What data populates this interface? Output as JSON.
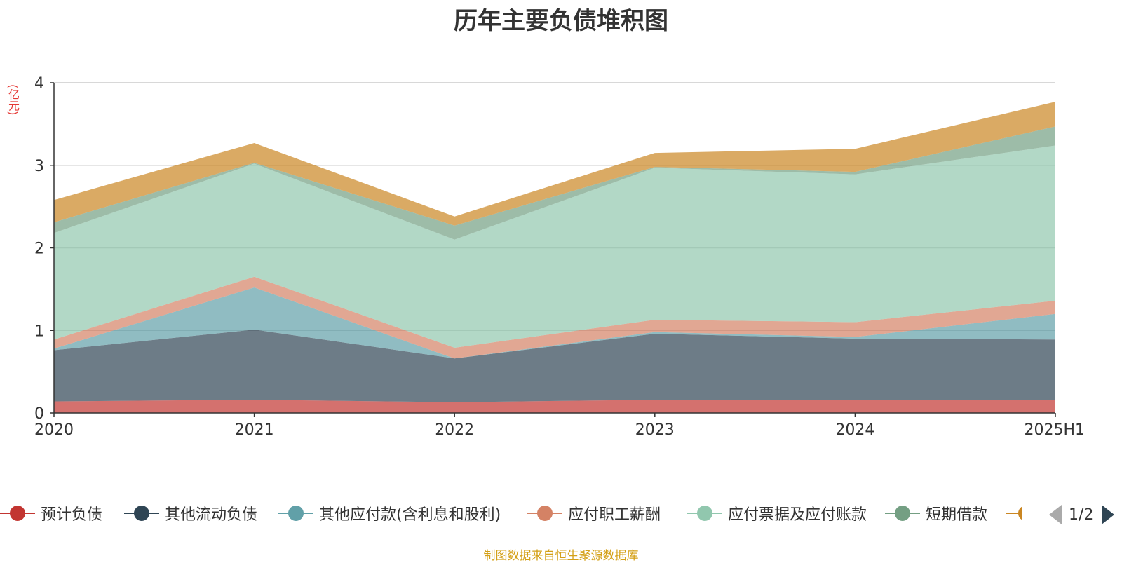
{
  "chart_data": {
    "type": "area",
    "stacked": true,
    "title": "历年主要负债堆积图",
    "ylabel": "(亿元)",
    "categories": [
      "2020",
      "2021",
      "2022",
      "2023",
      "2024",
      "2025H1"
    ],
    "ylim": [
      0,
      4
    ],
    "yticks": [
      0,
      1,
      2,
      3,
      4
    ],
    "grid": true,
    "legend_position": "bottom",
    "series": [
      {
        "name": "预计负债",
        "color": "#c23531",
        "values": [
          0.14,
          0.16,
          0.13,
          0.16,
          0.16,
          0.16
        ]
      },
      {
        "name": "其他流动负债",
        "color": "#2f4554",
        "values": [
          0.62,
          0.85,
          0.53,
          0.8,
          0.74,
          0.73
        ]
      },
      {
        "name": "其他应付款(含利息和股利)",
        "color": "#61a0a8",
        "values": [
          0.02,
          0.51,
          0.0,
          0.02,
          0.02,
          0.31
        ]
      },
      {
        "name": "应付职工薪酬",
        "color": "#d48265",
        "values": [
          0.11,
          0.13,
          0.13,
          0.15,
          0.18,
          0.16
        ]
      },
      {
        "name": "应付票据及应付账款",
        "color": "#91c7ae",
        "values": [
          1.29,
          1.37,
          1.31,
          1.84,
          1.79,
          1.88
        ]
      },
      {
        "name": "短期借款",
        "color": "#749f83",
        "values": [
          0.13,
          0.01,
          0.17,
          0.01,
          0.03,
          0.23
        ]
      },
      {
        "name": "",
        "color": "#ca8622",
        "values": [
          0.27,
          0.24,
          0.11,
          0.17,
          0.28,
          0.3
        ]
      }
    ]
  },
  "legend": {
    "items": [
      {
        "label": "预计负债",
        "color": "#c23531"
      },
      {
        "label": "其他流动负债",
        "color": "#2f4554"
      },
      {
        "label": "其他应付款(含利息和股利)",
        "color": "#61a0a8"
      },
      {
        "label": "应付职工薪酬",
        "color": "#d48265"
      },
      {
        "label": "应付票据及应付账款",
        "color": "#91c7ae"
      },
      {
        "label": "短期借款",
        "color": "#749f83"
      }
    ],
    "page": "1/2"
  },
  "source_note": "制图数据来自恒生聚源数据库"
}
